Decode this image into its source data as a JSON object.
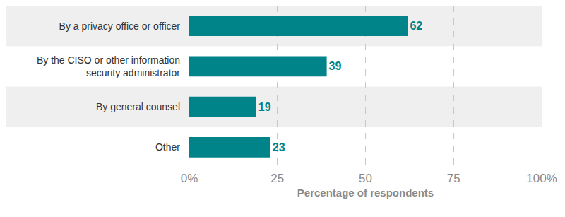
{
  "chart_data": {
    "type": "bar",
    "orientation": "horizontal",
    "categories": [
      "By a privacy office or officer",
      "By the CISO or other information security administrator",
      "By general counsel",
      "Other"
    ],
    "values": [
      62,
      39,
      19,
      23
    ],
    "color": "#008489",
    "data_labels": true,
    "xlabel": "Percentage of respondents",
    "xlim": [
      0,
      100
    ],
    "xticks": [
      {
        "value": 0,
        "label": "0%"
      },
      25,
      50,
      75,
      {
        "value": 100,
        "label": "100%"
      }
    ],
    "grid": true
  }
}
